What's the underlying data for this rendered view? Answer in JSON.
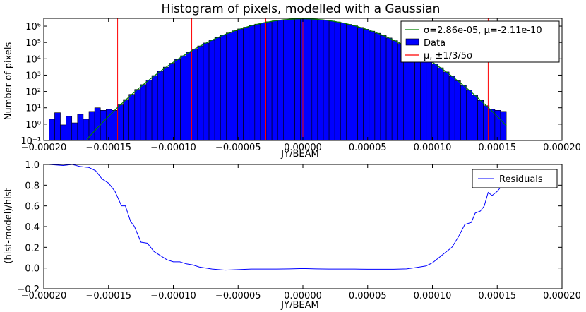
{
  "chart_data": [
    {
      "type": "bar",
      "title": "Histogram of pixels, modelled with a Gaussian",
      "xlabel": "JY/BEAM",
      "ylabel": "Number of pixels",
      "xlim": [
        -0.0002,
        0.0002
      ],
      "ylim": [
        0.1,
        3000000
      ],
      "yscale": "log",
      "grid": false,
      "legend_position": "top-right",
      "x_ticks": [
        "−0.00020",
        "−0.00015",
        "−0.00010",
        "−0.00005",
        "0.00000",
        "0.00005",
        "0.00010",
        "0.00015",
        "0.00020"
      ],
      "x_tick_values": [
        -0.0002,
        -0.00015,
        -0.0001,
        -5e-05,
        0,
        5e-05,
        0.0001,
        0.00015,
        0.0002
      ],
      "y_ticks": [
        "10⁻¹",
        "10⁰",
        "10¹",
        "10²",
        "10³",
        "10⁴",
        "10⁵",
        "10⁶"
      ],
      "y_tick_values": [
        0.1,
        1,
        10,
        100,
        1000,
        10000,
        100000,
        1000000
      ],
      "legend": [
        {
          "label": "σ=2.86e-05, μ=-2.11e-10",
          "kind": "line",
          "color": "#008000"
        },
        {
          "label": "Data",
          "kind": "patch",
          "color": "#0000ff"
        },
        {
          "label": "μ, ±1/3/5σ",
          "kind": "line",
          "color": "#ff0000"
        }
      ],
      "histogram": {
        "x_start": -0.000196,
        "x_end": 0.000157,
        "bins": 80,
        "color": "#0000ff",
        "sigma": 2.86e-05,
        "mu": -2.11e-10,
        "peak": 2800000,
        "noise_floor": [
          2,
          5,
          0.9,
          3,
          1.2,
          4,
          2,
          6,
          10,
          7,
          8
        ]
      },
      "gaussian_model": {
        "sigma": 2.86e-05,
        "mu": -2.11e-10,
        "peak": 2800000,
        "color": "#008000"
      },
      "vlines": {
        "color": "#ff0000",
        "x": [
          -0.000143,
          -8.58e-05,
          -2.86e-05,
          0,
          2.86e-05,
          8.58e-05,
          0.000143
        ]
      }
    },
    {
      "type": "line",
      "xlabel": "JY/BEAM",
      "ylabel": "(hist-model)/hist",
      "xlim": [
        -0.0002,
        0.0002
      ],
      "ylim": [
        -0.2,
        1.0
      ],
      "grid": false,
      "legend_position": "top-right",
      "x_ticks": [
        "−0.00020",
        "−0.00015",
        "−0.00010",
        "−0.00005",
        "0.00000",
        "0.00005",
        "0.00010",
        "0.00015",
        "0.00020"
      ],
      "x_tick_values": [
        -0.0002,
        -0.00015,
        -0.0001,
        -5e-05,
        0,
        5e-05,
        0.0001,
        0.00015,
        0.0002
      ],
      "y_ticks": [
        "−0.2",
        "0.0",
        "0.2",
        "0.4",
        "0.6",
        "0.8",
        "1.0"
      ],
      "y_tick_values": [
        -0.2,
        0,
        0.2,
        0.4,
        0.6,
        0.8,
        1.0
      ],
      "series": [
        {
          "name": "Residuals",
          "color": "#0000ff",
          "x": [
            -0.000196,
            -0.000185,
            -0.000178,
            -0.000172,
            -0.000165,
            -0.00016,
            -0.000155,
            -0.00015,
            -0.000145,
            -0.00014,
            -0.000137,
            -0.000133,
            -0.00013,
            -0.000125,
            -0.00012,
            -0.000115,
            -0.00011,
            -0.000105,
            -0.0001,
            -9.5e-05,
            -9e-05,
            -8.5e-05,
            -8e-05,
            -7e-05,
            -6e-05,
            -5e-05,
            -4e-05,
            -3e-05,
            -2e-05,
            -1e-05,
            0,
            1e-05,
            2e-05,
            3e-05,
            4e-05,
            5e-05,
            6e-05,
            7e-05,
            8e-05,
            8.5e-05,
            9e-05,
            9.5e-05,
            0.0001,
            0.000105,
            0.00011,
            0.000115,
            0.00012,
            0.000125,
            0.00013,
            0.000133,
            0.000137,
            0.00014,
            0.000143,
            0.000146,
            0.00015,
            0.000154,
            0.000157
          ],
          "y": [
            1.0,
            0.99,
            1.0,
            0.98,
            0.97,
            0.94,
            0.86,
            0.82,
            0.74,
            0.6,
            0.6,
            0.45,
            0.4,
            0.25,
            0.24,
            0.16,
            0.12,
            0.08,
            0.06,
            0.06,
            0.04,
            0.03,
            0.01,
            -0.01,
            -0.02,
            -0.015,
            -0.01,
            -0.01,
            -0.01,
            -0.008,
            -0.005,
            -0.008,
            -0.01,
            -0.01,
            -0.01,
            -0.012,
            -0.012,
            -0.012,
            -0.008,
            0.0,
            0.01,
            0.02,
            0.05,
            0.1,
            0.15,
            0.2,
            0.3,
            0.42,
            0.44,
            0.53,
            0.55,
            0.6,
            0.73,
            0.7,
            0.74,
            0.8,
            0.8
          ]
        }
      ]
    }
  ]
}
